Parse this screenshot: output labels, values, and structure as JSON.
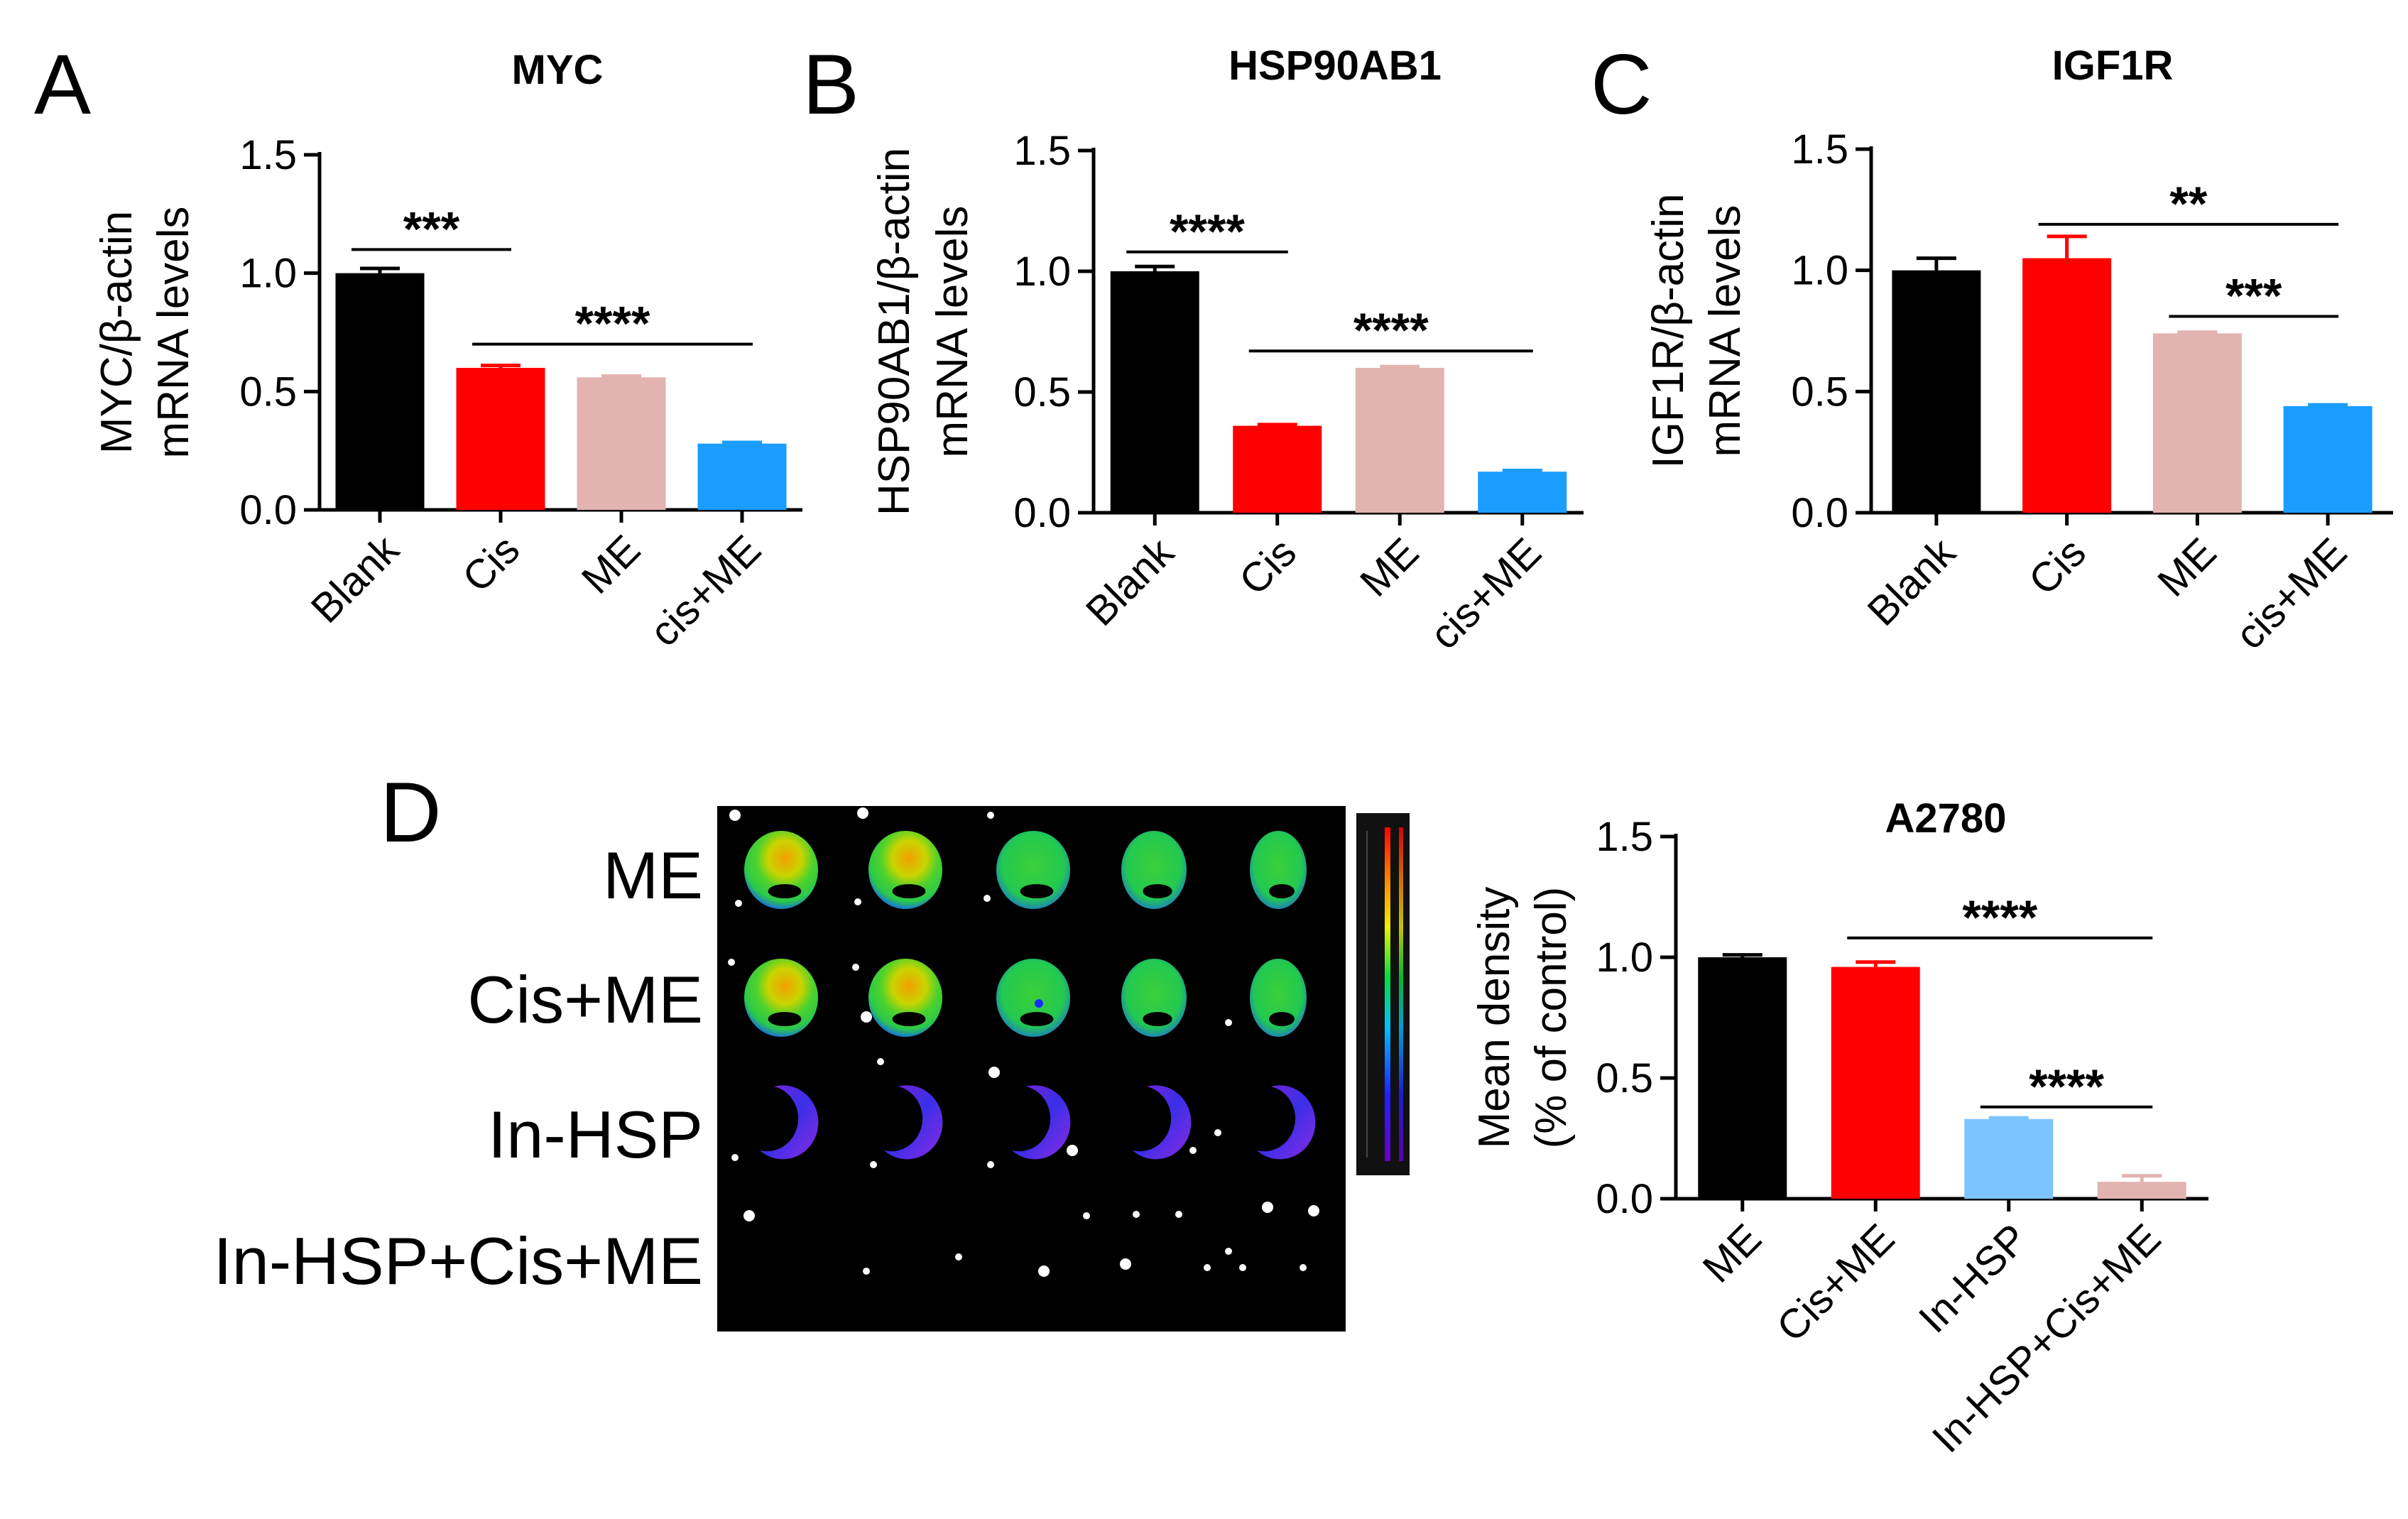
{
  "figure": {
    "panel_labels": [
      "A",
      "B",
      "C",
      "D"
    ],
    "colors": {
      "black": "#000000",
      "red": "#ff0000",
      "pink": "#e2b3b0",
      "blue": "#1a9dff",
      "lightblue": "#7cc4ff",
      "axis": "#000000"
    }
  },
  "chart_data": [
    {
      "id": "A",
      "type": "bar",
      "title": "MYC",
      "ylabel_line1": "MYC/β-actin",
      "ylabel_line2": "mRNA levels",
      "categories": [
        "Blank",
        "Cis",
        "ME",
        "cis+ME"
      ],
      "values": [
        1.0,
        0.6,
        0.56,
        0.28
      ],
      "errors": [
        0.02,
        0.01,
        0.005,
        0.005
      ],
      "bar_colors": [
        "#000000",
        "#ff0000",
        "#e2b3b0",
        "#1a9dff"
      ],
      "ylim": [
        0,
        1.5
      ],
      "yticks": [
        "0.0",
        "0.5",
        "1.0",
        "1.5"
      ],
      "significance": [
        {
          "from": 0,
          "to": 1,
          "level": 1.1,
          "label": "***"
        },
        {
          "from": 1,
          "to": 3,
          "level": 0.7,
          "label": "****"
        }
      ]
    },
    {
      "id": "B",
      "type": "bar",
      "title": "HSP90AB1",
      "ylabel_line1": "HSP90AB1/β-actin",
      "ylabel_line2": "mRNA levels",
      "categories": [
        "Blank",
        "Cis",
        "ME",
        "cis+ME"
      ],
      "values": [
        1.0,
        0.36,
        0.6,
        0.17
      ],
      "errors": [
        0.02,
        0.005,
        0.005,
        0.005
      ],
      "bar_colors": [
        "#000000",
        "#ff0000",
        "#e2b3b0",
        "#1a9dff"
      ],
      "ylim": [
        0,
        1.5
      ],
      "yticks": [
        "0.0",
        "0.5",
        "1.0",
        "1.5"
      ],
      "significance": [
        {
          "from": 0,
          "to": 1,
          "level": 1.08,
          "label": "****"
        },
        {
          "from": 1,
          "to": 3,
          "level": 0.67,
          "label": "****"
        }
      ]
    },
    {
      "id": "C",
      "type": "bar",
      "title": "IGF1R",
      "ylabel_line1": "IGF1R/β-actin",
      "ylabel_line2": "mRNA levels",
      "categories": [
        "Blank",
        "Cis",
        "ME",
        "cis+ME"
      ],
      "values": [
        1.0,
        1.05,
        0.74,
        0.44
      ],
      "errors": [
        0.05,
        0.09,
        0.005,
        0.005
      ],
      "bar_colors": [
        "#000000",
        "#ff0000",
        "#e2b3b0",
        "#1a9dff"
      ],
      "ylim": [
        0,
        1.5
      ],
      "yticks": [
        "0.0",
        "0.5",
        "1.0",
        "1.5"
      ],
      "significance": [
        {
          "from": 1,
          "to": 3,
          "level": 1.19,
          "label": "**"
        },
        {
          "from": 2,
          "to": 3,
          "level": 0.81,
          "label": "***"
        }
      ]
    },
    {
      "id": "D",
      "type": "bar",
      "title": "A2780",
      "ylabel_line1": "Mean density",
      "ylabel_line2": "(% of control)",
      "categories": [
        "ME",
        "Cis+ME",
        "In-HSP",
        "In-HSP+Cis+ME"
      ],
      "values": [
        1.0,
        0.96,
        0.33,
        0.07
      ],
      "errors": [
        0.01,
        0.02,
        0.005,
        0.025
      ],
      "bar_colors": [
        "#000000",
        "#ff0000",
        "#7cc4ff",
        "#e2b3b0"
      ],
      "ylim": [
        0,
        1.5
      ],
      "yticks": [
        "0.0",
        "0.5",
        "1.0",
        "1.5"
      ],
      "significance": [
        {
          "from": 1,
          "to": 3,
          "level": 1.08,
          "label": "****"
        },
        {
          "from": 2,
          "to": 3,
          "level": 0.38,
          "label": "****"
        }
      ]
    }
  ],
  "imaging": {
    "row_labels": [
      "ME",
      "Cis+ME",
      "In-HSP",
      "In-HSP+Cis+ME"
    ],
    "row_types": [
      "green",
      "green",
      "purple",
      "none"
    ],
    "columns": 5
  }
}
